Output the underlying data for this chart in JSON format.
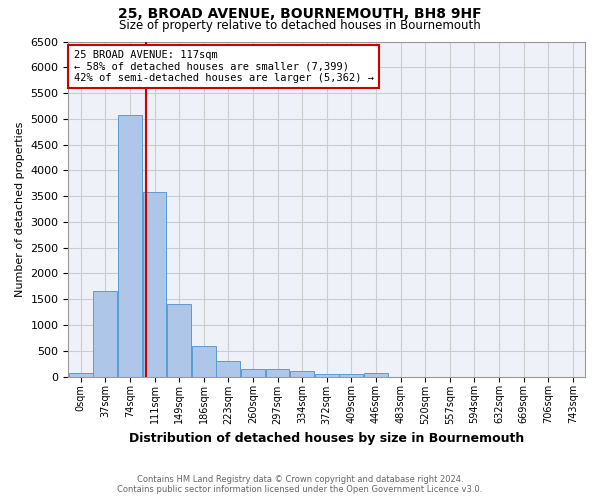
{
  "title": "25, BROAD AVENUE, BOURNEMOUTH, BH8 9HF",
  "subtitle": "Size of property relative to detached houses in Bournemouth",
  "xlabel": "Distribution of detached houses by size in Bournemouth",
  "ylabel": "Number of detached properties",
  "bin_labels": [
    "0sqm",
    "37sqm",
    "74sqm",
    "111sqm",
    "149sqm",
    "186sqm",
    "223sqm",
    "260sqm",
    "297sqm",
    "334sqm",
    "372sqm",
    "409sqm",
    "446sqm",
    "483sqm",
    "520sqm",
    "557sqm",
    "594sqm",
    "632sqm",
    "669sqm",
    "706sqm",
    "743sqm"
  ],
  "bin_edges": [
    0,
    37,
    74,
    111,
    148,
    185,
    222,
    259,
    296,
    333,
    370,
    407,
    444,
    481,
    518,
    555,
    592,
    629,
    666,
    703,
    740,
    777
  ],
  "bar_heights": [
    75,
    1650,
    5075,
    3575,
    1400,
    600,
    300,
    155,
    155,
    100,
    55,
    40,
    60,
    0,
    0,
    0,
    0,
    0,
    0,
    0,
    0
  ],
  "bar_color": "#aec6e8",
  "bar_edgecolor": "#5b9bd5",
  "property_sqm": 117,
  "vline_color": "#cc0000",
  "annotation_line1": "25 BROAD AVENUE: 117sqm",
  "annotation_line2": "← 58% of detached houses are smaller (7,399)",
  "annotation_line3": "42% of semi-detached houses are larger (5,362) →",
  "annotation_box_color": "#cc0000",
  "ylim": [
    0,
    6500
  ],
  "yticks": [
    0,
    500,
    1000,
    1500,
    2000,
    2500,
    3000,
    3500,
    4000,
    4500,
    5000,
    5500,
    6000,
    6500
  ],
  "grid_color": "#cccccc",
  "bg_color": "#eef2f8",
  "footer_line1": "Contains HM Land Registry data © Crown copyright and database right 2024.",
  "footer_line2": "Contains public sector information licensed under the Open Government Licence v3.0."
}
